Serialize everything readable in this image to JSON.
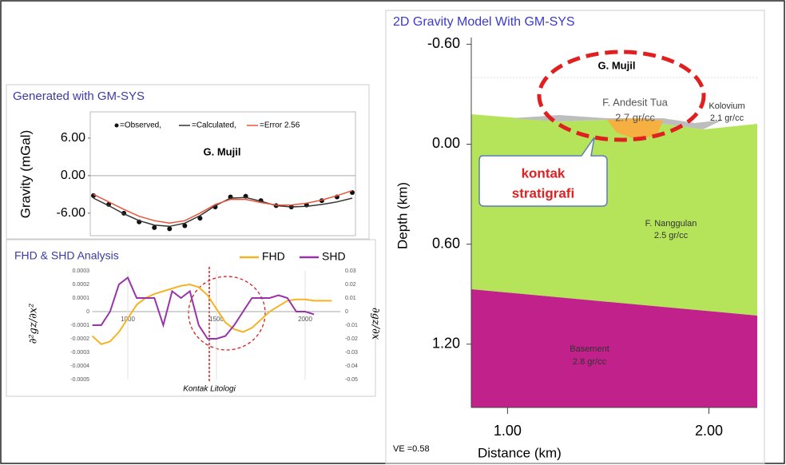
{
  "chart_data": [
    {
      "type": "line",
      "title": "Generated with GM-SYS",
      "ylabel": "Gravity (mGal)",
      "annotation": "G. Mujil",
      "categories": [
        null,
        null,
        null,
        null,
        null,
        null,
        null,
        null,
        null,
        null,
        null,
        null,
        null,
        null,
        null,
        null,
        null,
        null
      ],
      "ylim": [
        -9.6,
        10.2
      ],
      "yticks": [
        {
          "value": 6,
          "label": "6.00"
        },
        {
          "value": 0,
          "label": "0.00"
        },
        {
          "value": -6,
          "label": "-6.00"
        }
      ],
      "series": [
        {
          "name": "=Observed,",
          "color": "#111111",
          "style": "dots",
          "values": [
            -3.2,
            -4.6,
            -6.0,
            -7.4,
            -8.3,
            -8.5,
            -8.0,
            -6.8,
            -5.0,
            -3.4,
            -3.3,
            -4.0,
            -4.8,
            -5.0,
            -4.7,
            -4.0,
            -3.4,
            -2.7
          ]
        },
        {
          "name": "=Calculated,",
          "color": "#333333",
          "style": "line",
          "values": [
            -3.6,
            -4.8,
            -6.1,
            -7.2,
            -7.9,
            -8.1,
            -7.6,
            -6.4,
            -4.8,
            -3.6,
            -3.5,
            -4.1,
            -4.8,
            -5.0,
            -4.9,
            -4.6,
            -4.2,
            -3.6
          ]
        },
        {
          "name": "=Error 2.56",
          "color": "#e8553a",
          "style": "line",
          "values": [
            -3.0,
            -4.2,
            -5.4,
            -6.5,
            -7.2,
            -7.6,
            -7.2,
            -6.0,
            -4.6,
            -3.8,
            -3.8,
            -4.3,
            -4.7,
            -4.7,
            -4.4,
            -3.9,
            -3.2,
            -2.4
          ]
        }
      ]
    },
    {
      "type": "line",
      "title": "FHD & SHD Analysis",
      "ylabel": "∂²gz/∂x²",
      "y2label": "∂gz/∂x",
      "annotation": "Kontak Litologi",
      "x": [
        800,
        850,
        900,
        950,
        1000,
        1050,
        1100,
        1150,
        1200,
        1250,
        1300,
        1350,
        1400,
        1450,
        1500,
        1550,
        1600,
        1650,
        1700,
        1750,
        1800,
        1850,
        1900,
        1950,
        2000,
        2050,
        2100,
        2150
      ],
      "xlim": [
        800,
        2200
      ],
      "xticks": [
        1000,
        1500,
        2000
      ],
      "ylim": [
        -0.0005,
        0.0003
      ],
      "yticks": [
        0.0003,
        0.0002,
        0.0001,
        0,
        -0.0001,
        -0.0002,
        -0.0003,
        -0.0004,
        -0.0005
      ],
      "y2lim": [
        -0.05,
        0.03
      ],
      "y2ticks": [
        0.03,
        0.02,
        0.01,
        0,
        -0.01,
        -0.02,
        -0.03,
        -0.04,
        -0.05
      ],
      "series": [
        {
          "name": "FHD",
          "color": "#f5b324",
          "axis": "y2",
          "values": [
            -0.018,
            -0.024,
            -0.022,
            -0.015,
            -0.005,
            0.005,
            0.01,
            0.013,
            0.015,
            0.017,
            0.019,
            0.02,
            0.018,
            0.012,
            0.002,
            -0.008,
            -0.013,
            -0.015,
            -0.012,
            -0.006,
            0,
            0.004,
            0.008,
            0.009,
            0.009,
            0.008,
            0.008,
            0.008
          ]
        },
        {
          "name": "SHD",
          "color": "#9933aa",
          "values": [
            -0.0001,
            -0.0001,
            0,
            0.0002,
            0.00025,
            0.0001,
            0.0001,
            0.0001,
            -0.0001,
            0.00015,
            0.0001,
            0.00015,
            -0.0001,
            -0.0002,
            -0.0002,
            -0.00018,
            -0.0001,
            0,
            0.0001,
            0.0001,
            0.0001,
            0.00012,
            0.0001,
            0,
            0,
            -2e-05,
            null,
            null
          ]
        }
      ]
    },
    {
      "type": "section",
      "title": "2D Gravity Model With GM-SYS",
      "xlabel": "Distance (km)",
      "ylabel": "Depth (km)",
      "note": "VE =0.58",
      "xlim": [
        0.82,
        2.24
      ],
      "xticks": [
        {
          "value": 1,
          "label": "1.00"
        },
        {
          "value": 2,
          "label": "2.00"
        }
      ],
      "ylim": [
        -0.64,
        1.58
      ],
      "y_inverted": true,
      "yticks": [
        {
          "value": -0.6,
          "label": "-0.60"
        },
        {
          "value": 0,
          "label": "0.00"
        },
        {
          "value": 0.6,
          "label": "0.60"
        },
        {
          "value": 1.2,
          "label": "1.20"
        }
      ],
      "labels": {
        "peak": "G. Mujil",
        "andesit": "F. Andesit Tua",
        "andesit_density": "2.7 gr/cc",
        "kolovium": "Kolovium",
        "kolovium_density": "2.1 gr/cc",
        "nanggulan": "F. Nanggulan",
        "nanggulan_density": "2.5 gr/cc",
        "basement": "Basement",
        "basement_density": "2.8 gr/cc",
        "callout_1": "kontak",
        "callout_2": "stratigrafi"
      }
    }
  ]
}
